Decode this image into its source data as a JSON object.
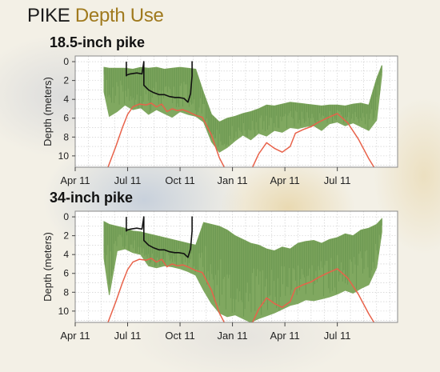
{
  "title": {
    "prefix": "PIKE",
    "accent": "Depth Use"
  },
  "colors": {
    "depth": "#80a860",
    "line_black": "#111111",
    "line_red": "#e8624a",
    "accent": "#a07a1e"
  },
  "chart_data": [
    {
      "type": "line",
      "title": "18.5-inch pike",
      "ylabel": "Depth (meters)",
      "xlabel": "",
      "x_ticks": [
        "Apr 11",
        "Jul 11",
        "Oct 11",
        "Jan 11",
        "Apr 11",
        "Jul 11"
      ],
      "y_ticks": [
        0,
        2,
        4,
        6,
        8,
        10
      ],
      "ylim": [
        11.2,
        -0.6
      ],
      "y_inverted": true,
      "grid": true,
      "series": [
        {
          "color": "green",
          "style": "band",
          "x": [
            1.1,
            1.3,
            1.6,
            1.9,
            2.2,
            2.5,
            2.8,
            3.1,
            3.4,
            3.7,
            4.0,
            4.3,
            4.6,
            4.9,
            5.2,
            5.5,
            5.8,
            6.1,
            6.4,
            6.7,
            7.0,
            7.3,
            7.6,
            7.9,
            8.2,
            8.5,
            8.8,
            9.1,
            9.4,
            9.7,
            10.0,
            10.3,
            10.6,
            10.9,
            11.2,
            11.5,
            11.7
          ],
          "min": [
            0.6,
            0.7,
            0.7,
            0.7,
            0.8,
            0.6,
            0.7,
            0.6,
            0.8,
            0.7,
            0.6,
            0.7,
            0.8,
            3.3,
            5.6,
            6.4,
            6.0,
            5.8,
            5.5,
            5.3,
            5.0,
            4.6,
            4.7,
            4.5,
            4.3,
            4.4,
            4.5,
            4.6,
            4.7,
            4.6,
            4.6,
            4.7,
            4.5,
            4.4,
            4.6,
            1.8,
            0.4
          ],
          "max": [
            3.2,
            5.8,
            5.3,
            4.6,
            5.1,
            4.9,
            5.6,
            5.1,
            5.5,
            5.9,
            5.3,
            5.6,
            5.8,
            6.4,
            8.5,
            9.6,
            9.1,
            8.4,
            7.8,
            8.3,
            7.6,
            7.9,
            7.3,
            7.5,
            7.0,
            7.1,
            6.9,
            6.8,
            7.3,
            6.6,
            6.4,
            6.8,
            6.5,
            6.9,
            7.3,
            6.2,
            1.4
          ]
        },
        {
          "color": "black",
          "x": [
            1.95,
            1.95,
            1.95,
            1.98,
            2.1,
            2.35,
            2.55,
            2.62,
            2.62,
            2.8,
            3.0,
            3.2,
            3.4,
            3.6,
            3.8,
            3.95,
            4.15,
            4.3,
            4.4,
            4.46,
            4.46,
            4.46
          ],
          "y": [
            0.0,
            0.0,
            1.5,
            1.4,
            1.3,
            1.2,
            1.3,
            0.0,
            2.5,
            3.0,
            3.3,
            3.5,
            3.5,
            3.7,
            3.8,
            3.8,
            3.9,
            4.3,
            3.4,
            1.5,
            0.0,
            1.4
          ]
        },
        {
          "color": "red",
          "x": [
            1.25,
            1.55,
            1.8,
            2.0,
            2.2,
            2.45,
            2.7,
            2.9,
            3.1,
            3.3,
            3.5,
            3.7,
            3.9,
            4.1,
            4.3,
            4.6,
            4.85,
            5.2,
            5.5,
            5.8,
            6.1,
            6.4,
            6.7,
            7.0,
            7.3,
            7.6,
            7.9,
            8.2,
            8.4,
            8.7,
            9.0,
            9.3,
            9.6,
            10.0,
            10.4,
            10.8,
            11.2,
            11.4
          ],
          "y": [
            11.2,
            9.0,
            7.0,
            5.6,
            4.8,
            4.5,
            4.6,
            4.4,
            4.8,
            4.5,
            5.3,
            5.0,
            5.2,
            5.1,
            5.3,
            5.7,
            5.9,
            7.8,
            10.2,
            11.8,
            13.0,
            12.5,
            11.6,
            9.8,
            8.6,
            9.2,
            9.6,
            9.0,
            7.6,
            7.2,
            6.9,
            6.4,
            6.0,
            5.5,
            6.5,
            8.2,
            10.3,
            11.2
          ]
        }
      ]
    },
    {
      "type": "line",
      "title": "34-inch pike",
      "ylabel": "Depth (meters)",
      "xlabel": "",
      "x_ticks": [
        "Apr 11",
        "Jul 11",
        "Oct 11",
        "Jan 11",
        "Apr 11",
        "Jul 11"
      ],
      "y_ticks": [
        0,
        2,
        4,
        6,
        8,
        10
      ],
      "ylim": [
        11.2,
        -0.6
      ],
      "y_inverted": true,
      "grid": true,
      "series": [
        {
          "color": "green",
          "style": "band",
          "x": [
            1.1,
            1.3,
            1.6,
            1.9,
            2.2,
            2.5,
            2.8,
            3.1,
            3.4,
            3.7,
            4.0,
            4.3,
            4.6,
            4.9,
            5.2,
            5.5,
            5.8,
            6.1,
            6.4,
            6.7,
            7.0,
            7.3,
            7.6,
            7.9,
            8.2,
            8.5,
            8.8,
            9.1,
            9.4,
            9.7,
            10.0,
            10.3,
            10.6,
            10.9,
            11.2,
            11.5,
            11.7
          ],
          "min": [
            0.5,
            0.8,
            1.0,
            1.2,
            1.5,
            1.6,
            1.8,
            2.0,
            2.2,
            2.4,
            2.6,
            2.8,
            3.0,
            0.6,
            0.8,
            1.0,
            1.4,
            2.0,
            2.4,
            2.8,
            3.0,
            3.4,
            3.6,
            3.2,
            3.4,
            2.8,
            2.6,
            2.5,
            2.8,
            2.4,
            2.2,
            1.8,
            2.0,
            1.4,
            1.2,
            0.8,
            0.2
          ],
          "max": [
            4.4,
            8.3,
            3.6,
            3.4,
            3.8,
            4.0,
            5.2,
            5.4,
            5.2,
            5.3,
            5.5,
            5.8,
            6.2,
            7.8,
            9.2,
            10.2,
            10.6,
            10.4,
            10.8,
            11.2,
            10.8,
            10.5,
            10.2,
            9.8,
            9.4,
            9.2,
            8.8,
            8.9,
            8.7,
            8.5,
            8.2,
            7.8,
            8.1,
            7.6,
            7.2,
            5.4,
            1.6
          ]
        },
        {
          "color": "black",
          "x": [
            1.95,
            1.95,
            1.95,
            1.98,
            2.1,
            2.35,
            2.55,
            2.62,
            2.62,
            2.8,
            3.0,
            3.2,
            3.4,
            3.6,
            3.8,
            3.95,
            4.15,
            4.3,
            4.4,
            4.46,
            4.46,
            4.46
          ],
          "y": [
            0.0,
            0.0,
            1.5,
            1.4,
            1.3,
            1.2,
            1.3,
            0.0,
            2.5,
            3.0,
            3.3,
            3.5,
            3.5,
            3.7,
            3.8,
            3.8,
            3.9,
            4.3,
            3.4,
            1.5,
            0.0,
            1.4
          ]
        },
        {
          "color": "red",
          "x": [
            1.25,
            1.55,
            1.8,
            2.0,
            2.2,
            2.45,
            2.7,
            2.9,
            3.1,
            3.3,
            3.5,
            3.7,
            3.9,
            4.1,
            4.3,
            4.6,
            4.85,
            5.2,
            5.5,
            5.8,
            6.1,
            6.4,
            6.7,
            7.0,
            7.3,
            7.6,
            7.9,
            8.2,
            8.4,
            8.7,
            9.0,
            9.3,
            9.6,
            10.0,
            10.4,
            10.8,
            11.2,
            11.4
          ],
          "y": [
            11.2,
            9.0,
            7.0,
            5.6,
            4.8,
            4.5,
            4.6,
            4.4,
            4.8,
            4.5,
            5.3,
            5.0,
            5.2,
            5.1,
            5.3,
            5.7,
            5.9,
            7.8,
            10.2,
            11.8,
            13.0,
            12.5,
            11.6,
            9.8,
            8.6,
            9.2,
            9.6,
            9.0,
            7.6,
            7.2,
            6.9,
            6.4,
            6.0,
            5.5,
            6.5,
            8.2,
            10.3,
            11.2
          ]
        }
      ]
    }
  ]
}
